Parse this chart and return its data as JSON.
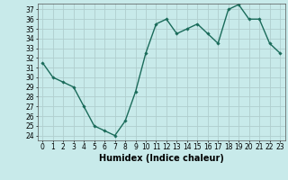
{
  "x": [
    0,
    1,
    2,
    3,
    4,
    5,
    6,
    7,
    8,
    9,
    10,
    11,
    12,
    13,
    14,
    15,
    16,
    17,
    18,
    19,
    20,
    21,
    22,
    23
  ],
  "y": [
    31.5,
    30.0,
    29.5,
    29.0,
    27.0,
    25.0,
    24.5,
    24.0,
    25.5,
    28.5,
    32.5,
    35.5,
    36.0,
    34.5,
    35.0,
    35.5,
    34.5,
    33.5,
    37.0,
    37.5,
    36.0,
    36.0,
    33.5,
    32.5
  ],
  "xlabel": "Humidex (Indice chaleur)",
  "xlim": [
    -0.5,
    23.5
  ],
  "ylim": [
    23.5,
    37.6
  ],
  "yticks": [
    24,
    25,
    26,
    27,
    28,
    29,
    30,
    31,
    32,
    33,
    34,
    35,
    36,
    37
  ],
  "xticks": [
    0,
    1,
    2,
    3,
    4,
    5,
    6,
    7,
    8,
    9,
    10,
    11,
    12,
    13,
    14,
    15,
    16,
    17,
    18,
    19,
    20,
    21,
    22,
    23
  ],
  "line_color": "#1a6b5a",
  "marker": "D",
  "marker_size": 1.8,
  "bg_color": "#c8eaea",
  "grid_color": "#b0cece",
  "tick_label_fontsize": 5.5,
  "xlabel_fontsize": 7.0,
  "line_width": 1.0
}
